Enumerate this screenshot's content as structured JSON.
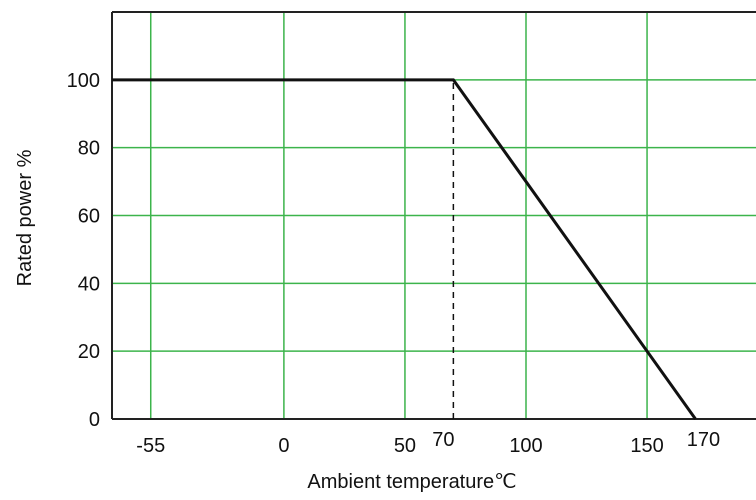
{
  "chart_data": {
    "type": "line",
    "title": "",
    "xlabel": "Ambient temperature℃",
    "ylabel": "Rated power %",
    "x_ticks": [
      -55,
      0,
      50,
      70,
      100,
      150,
      170
    ],
    "x_tick_labels": [
      "-55",
      "0",
      "50",
      "70",
      "100",
      "150",
      "170"
    ],
    "y_ticks": [
      0,
      20,
      40,
      60,
      80,
      100
    ],
    "y_tick_labels": [
      "0",
      "20",
      "40",
      "60",
      "80",
      "100"
    ],
    "x_gridlines": [
      -55,
      0,
      50,
      100,
      150
    ],
    "y_gridlines": [
      20,
      40,
      60,
      80,
      100
    ],
    "xlim": [
      -71,
      195
    ],
    "ylim": [
      0,
      120
    ],
    "grid": true,
    "series": [
      {
        "x": [
          -71,
          70,
          170
        ],
        "y": [
          100,
          100,
          0
        ]
      }
    ],
    "annotations": [
      {
        "type": "dashed_vertical",
        "x": 70,
        "y_from": 0,
        "y_to": 100
      }
    ],
    "colors": {
      "grid": "#3cb44b",
      "line": "#111111",
      "frame": "#222222",
      "dashed": "#111111"
    }
  }
}
